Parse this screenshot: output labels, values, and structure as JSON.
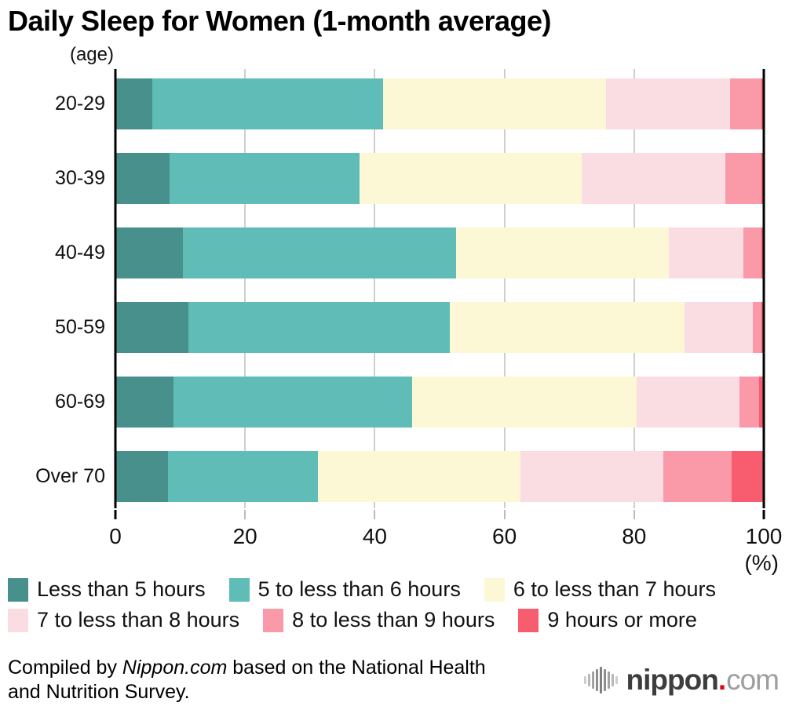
{
  "title": "Daily Sleep for Women (1-month average)",
  "axis": {
    "y_unit_label": "(age)",
    "x_ticks": [
      "0",
      "20",
      "40",
      "60",
      "80",
      "100"
    ],
    "x_unit_label": "(%)"
  },
  "chart_data": {
    "type": "bar",
    "stacked": true,
    "orientation": "horizontal",
    "grid": "vertical-on",
    "xlim": [
      0,
      100
    ],
    "legend_position": "bottom",
    "categories": [
      "20-29",
      "30-39",
      "40-49",
      "50-59",
      "60-69",
      "Over 70"
    ],
    "series": [
      {
        "name": "Less than 5 hours",
        "color": "#48908c",
        "values": [
          5.7,
          8.4,
          10.4,
          11.3,
          9.0,
          8.1
        ]
      },
      {
        "name": "5 to less than 6 hours",
        "color": "#5fbcb6",
        "values": [
          35.6,
          29.3,
          42.2,
          40.3,
          36.8,
          23.1
        ]
      },
      {
        "name": "6 to less than 7 hours",
        "color": "#fcf8d6",
        "values": [
          34.4,
          34.2,
          32.8,
          36.2,
          34.6,
          31.3
        ]
      },
      {
        "name": "7 to less than 8 hours",
        "color": "#fadde3",
        "values": [
          19.1,
          22.2,
          11.5,
          10.5,
          15.8,
          22.0
        ]
      },
      {
        "name": "8 to less than 9 hours",
        "color": "#fa9aa8",
        "values": [
          4.8,
          5.5,
          2.7,
          1.4,
          3.1,
          10.5
        ]
      },
      {
        "name": "9 hours or more",
        "color": "#f75d6e",
        "values": [
          0.4,
          0.4,
          0.4,
          0.3,
          0.7,
          5.0
        ]
      }
    ],
    "legend_rows": [
      [
        0,
        1,
        2
      ],
      [
        3,
        4,
        5
      ]
    ]
  },
  "footer": {
    "credit_prefix": "Compiled by ",
    "credit_source": "Nippon.com",
    "credit_suffix": " based on the National Health",
    "credit_line2": "and Nutrition Survey.",
    "logo": {
      "icon": "audio-bars-icon",
      "main": "nippon",
      "dot": ".",
      "suffix": "com",
      "main_color": "#3d3d3d",
      "dot_color": "#e60012",
      "suffix_color": "#9e9e9e"
    }
  }
}
